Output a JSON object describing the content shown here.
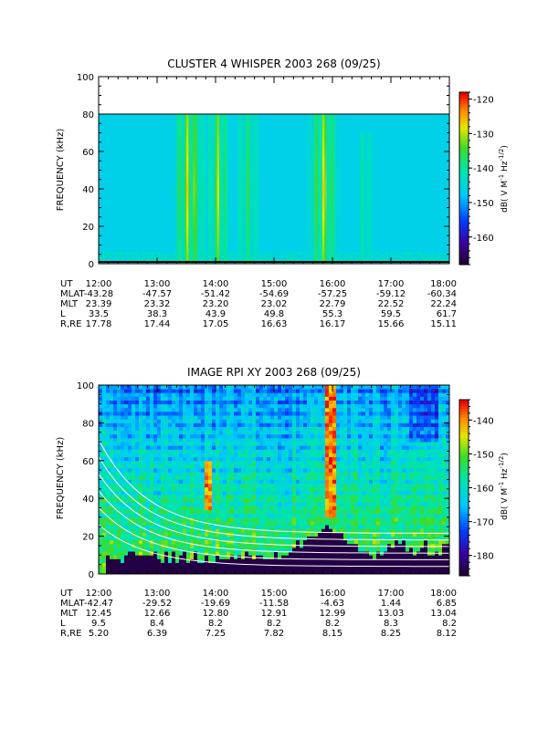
{
  "chart_data": [
    {
      "type": "heatmap",
      "title": "CLUSTER 4 WHISPER 2003 268 (09/25)",
      "ylabel": "FREQUENCY (kHz)",
      "ylim": [
        0,
        100
      ],
      "yticks": [
        "0",
        "20",
        "40",
        "60",
        "80",
        "100"
      ],
      "xlim": [
        "12:00",
        "18:00"
      ],
      "colorbar": {
        "label": "dB( V M⁻¹ Hz⁻¹ᐟ²)",
        "label_main": "dB( V M",
        "label_sup1": "-1",
        "label_mid": " Hz",
        "label_sup2": "-1/2",
        "label_end": ")",
        "range": [
          -168,
          -118
        ],
        "ticks": [
          "-120",
          "-130",
          "-140",
          "-150",
          "-160"
        ]
      },
      "data_ceiling_khz": 80,
      "ephemeris": {
        "labels": [
          "UT",
          "MLAT",
          "MLT",
          "L",
          "R,RE"
        ],
        "columns": [
          {
            "UT": "12:00",
            "MLAT": "-43.28",
            "MLT": "23.39",
            "L": "33.5",
            "R,RE": "17.78"
          },
          {
            "UT": "13:00",
            "MLAT": "-47.57",
            "MLT": "23.32",
            "L": "38.3",
            "R,RE": "17.44"
          },
          {
            "UT": "14:00",
            "MLAT": "-51.42",
            "MLT": "23.20",
            "L": "43.9",
            "R,RE": "17.05"
          },
          {
            "UT": "15:00",
            "MLAT": "-54.69",
            "MLT": "23.02",
            "L": "49.8",
            "R,RE": "16.63"
          },
          {
            "UT": "16:00",
            "MLAT": "-57.25",
            "MLT": "22.79",
            "L": "55.3",
            "R,RE": "16.17"
          },
          {
            "UT": "17:00",
            "MLAT": "-59.12",
            "MLT": "22.52",
            "L": "59.5",
            "R,RE": "15.66"
          },
          {
            "UT": "18:00",
            "MLAT": "-60.34",
            "MLT": "22.24",
            "L": "61.7",
            "R,RE": "15.11"
          }
        ]
      },
      "features": [
        {
          "t": 13.55,
          "w": 0.32,
          "fmax": 80,
          "level": 1.0
        },
        {
          "t": 14.05,
          "w": 0.22,
          "fmax": 80,
          "level": 0.85
        },
        {
          "t": 14.55,
          "w": 0.25,
          "fmax": 80,
          "level": 0.5
        },
        {
          "t": 15.85,
          "w": 0.3,
          "fmax": 80,
          "level": 0.95
        },
        {
          "t": 16.55,
          "w": 0.2,
          "fmax": 70,
          "level": 0.35
        }
      ]
    },
    {
      "type": "heatmap",
      "title": "IMAGE RPI XY 2003 268 (09/25)",
      "ylabel": "FREQUENCY (kHz)",
      "ylim": [
        0,
        100
      ],
      "yticks": [
        "0",
        "20",
        "40",
        "60",
        "80",
        "100"
      ],
      "xlim": [
        "12:00",
        "18:00"
      ],
      "colorbar": {
        "label_main": "dB( V M",
        "label_sup1": "-1",
        "label_mid": " Hz",
        "label_sup2": "-1/2",
        "label_end": ")",
        "range": [
          -186,
          -134
        ],
        "ticks": [
          "-140",
          "-150",
          "-160",
          "-170",
          "-180"
        ]
      },
      "ephemeris": {
        "labels": [
          "UT",
          "MLAT",
          "MLT",
          "L",
          "R,RE"
        ],
        "columns": [
          {
            "UT": "12:00",
            "MLAT": "-42.47",
            "MLT": "12.45",
            "L": "9.5",
            "R,RE": "5.20"
          },
          {
            "UT": "13:00",
            "MLAT": "-29.52",
            "MLT": "12.66",
            "L": "8.4",
            "R,RE": "6.39"
          },
          {
            "UT": "14:00",
            "MLAT": "-19.69",
            "MLT": "12.80",
            "L": "8.2",
            "R,RE": "7.25"
          },
          {
            "UT": "15:00",
            "MLAT": "-11.58",
            "MLT": "12.91",
            "L": "8.2",
            "R,RE": "7.82"
          },
          {
            "UT": "16:00",
            "MLAT": "-4.63",
            "MLT": "12.99",
            "L": "8.2",
            "R,RE": "8.15"
          },
          {
            "UT": "17:00",
            "MLAT": "1.44",
            "MLT": "13.03",
            "L": "8.3",
            "R,RE": "8.25"
          },
          {
            "UT": "18:00",
            "MLAT": "6.85",
            "MLT": "13.04",
            "L": "8.2",
            "R,RE": "8.12"
          }
        ]
      },
      "features": [
        {
          "t": 15.95,
          "w": 0.1,
          "fmin": 30,
          "fmax": 100,
          "level": 1.0
        },
        {
          "t": 13.85,
          "w": 0.06,
          "fmin": 35,
          "fmax": 60,
          "level": 0.9
        }
      ]
    }
  ]
}
